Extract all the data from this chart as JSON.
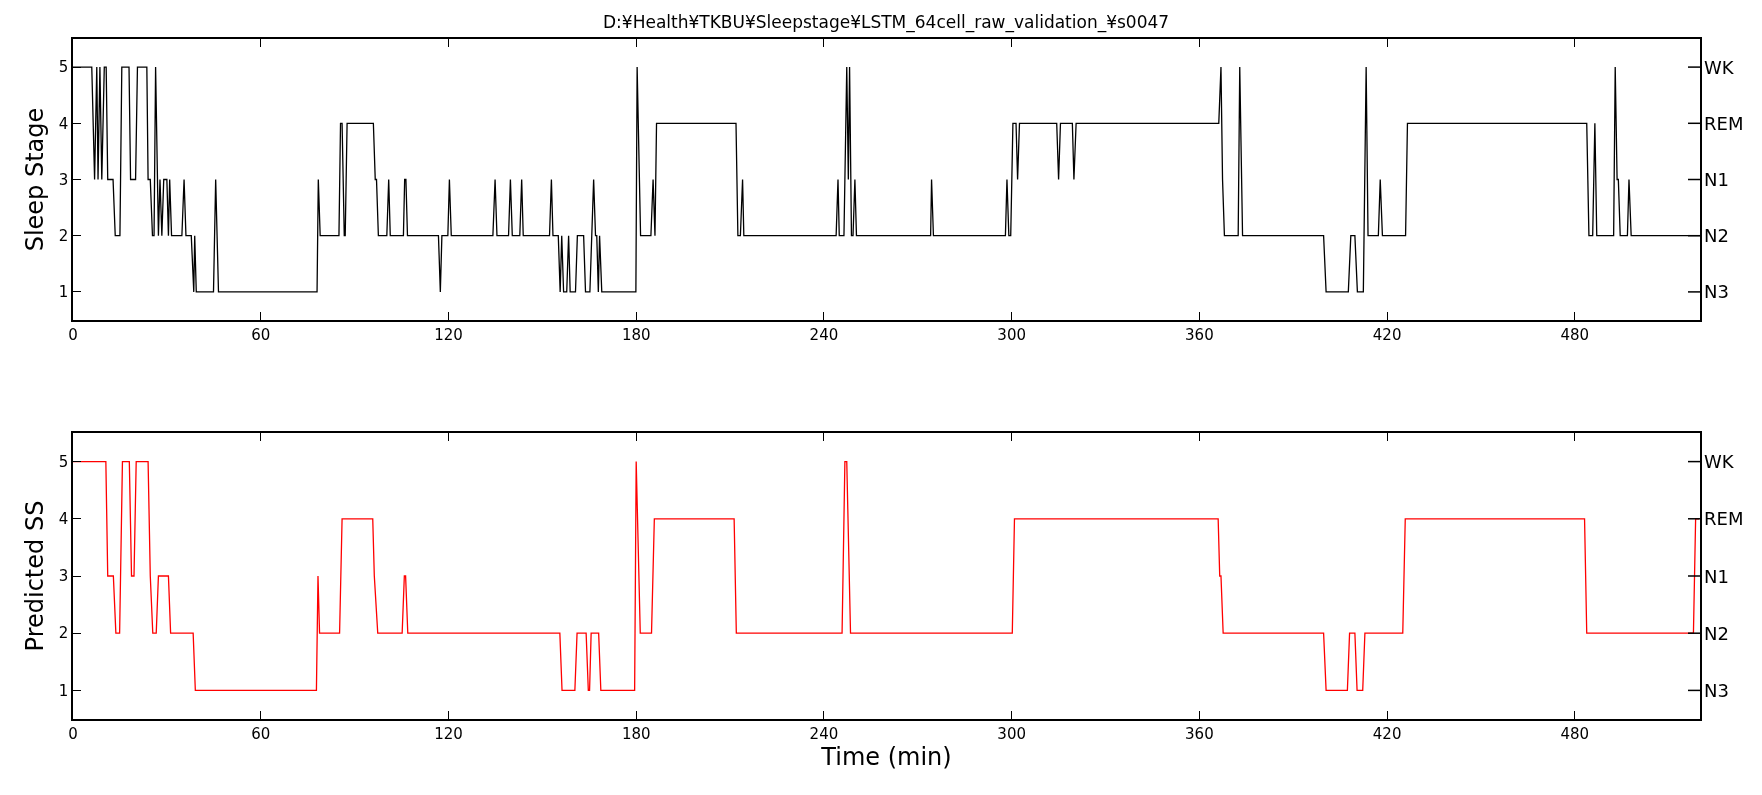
{
  "chart_data": [
    {
      "type": "line",
      "title": "D:¥Health¥TKBU¥Sleepstage¥LSTM_64cell_raw_validation_¥s0047",
      "ylabel": "Sleep Stage",
      "xlim": [
        0,
        520
      ],
      "xticks": [
        0,
        60,
        120,
        180,
        240,
        300,
        360,
        420,
        480
      ],
      "ylim": [
        0.5,
        5.5
      ],
      "yticks": [
        1,
        2,
        3,
        4,
        5
      ],
      "y2_categories": [
        "WK",
        "REM",
        "N1",
        "N2",
        "N3"
      ],
      "line_style": "solid",
      "series": [
        {
          "color": "#000000",
          "x": [
            0,
            6.0,
            6.9,
            7.6,
            8.0,
            8.6,
            9.2,
            10.0,
            10.6,
            11.1,
            12.8,
            13.5,
            15.0,
            15.6,
            17.9,
            18.4,
            20.0,
            20.6,
            23.6,
            24.0,
            24.7,
            25.4,
            25.9,
            26.4,
            27.3,
            27.8,
            28.4,
            29.0,
            30.0,
            30.5,
            30.9,
            31.5,
            34.8,
            35.5,
            36.1,
            37.8,
            38.6,
            38.9,
            39.4,
            44.9,
            45.6,
            46.5,
            78.0,
            78.4,
            79.0,
            85.0,
            85.5,
            86.0,
            86.7,
            87.0,
            87.6,
            96.0,
            96.6,
            97.0,
            97.6,
            100.3,
            100.9,
            101.4,
            105.6,
            106.0,
            106.4,
            106.9,
            116.8,
            117.4,
            117.9,
            119.8,
            120.3,
            120.9,
            134.2,
            134.9,
            135.5,
            139.2,
            139.8,
            140.4,
            142.8,
            143.4,
            143.9,
            152.3,
            152.9,
            153.4,
            155.1,
            155.7,
            156.2,
            156.8,
            157.8,
            158.4,
            158.9,
            160.6,
            161.2,
            163.2,
            163.8,
            165.2,
            166.4,
            167.0,
            167.4,
            167.9,
            168.3,
            169.0,
            179.9,
            180.3,
            181.4,
            184.7,
            185.4,
            186.0,
            186.5,
            211.9,
            212.5,
            213.3,
            214.0,
            214.4,
            243.9,
            244.5,
            244.9,
            246.4,
            247.3,
            247.8,
            248.2,
            248.8,
            249.3,
            249.9,
            250.4,
            274.1,
            274.4,
            275.0,
            298.0,
            298.5,
            299.1,
            299.7,
            300.4,
            301.4,
            301.9,
            302.5,
            314.4,
            315.0,
            315.6,
            319.4,
            319.9,
            320.6,
            366.2,
            366.9,
            367.4,
            368.0,
            372.4,
            372.9,
            373.8,
            399.7,
            400.5,
            407.6,
            408.4,
            409.7,
            410.5,
            412.4,
            413.3,
            413.9,
            417.2,
            417.8,
            418.5,
            425.9,
            426.5,
            483.8,
            484.5,
            485.7,
            486.4,
            487.0,
            492.4,
            492.9,
            493.5,
            493.9,
            494.5,
            496.8,
            497.3,
            498.0,
            520
          ],
          "values": [
            5,
            5,
            3,
            5,
            3,
            5,
            3,
            5,
            5,
            3,
            3,
            2,
            2,
            5,
            5,
            3,
            3,
            5,
            5,
            3,
            3,
            2,
            2,
            5,
            2,
            3,
            2,
            3,
            3,
            2,
            3,
            2,
            2,
            3,
            2,
            2,
            1,
            2,
            1,
            1,
            3,
            1,
            1,
            3,
            2,
            2,
            4,
            4,
            2,
            2,
            4,
            4,
            3,
            3,
            2,
            2,
            3,
            2,
            2,
            3,
            3,
            2,
            2,
            1,
            2,
            2,
            3,
            2,
            2,
            3,
            2,
            2,
            3,
            2,
            2,
            3,
            2,
            2,
            3,
            2,
            2,
            1,
            2,
            1,
            1,
            2,
            1,
            1,
            2,
            2,
            1,
            1,
            3,
            2,
            2,
            1,
            2,
            1,
            1,
            5,
            2,
            2,
            3,
            2,
            4,
            4,
            2,
            2,
            3,
            2,
            2,
            3,
            2,
            2,
            5,
            3,
            5,
            2,
            2,
            3,
            2,
            2,
            3,
            2,
            2,
            3,
            2,
            2,
            4,
            4,
            3,
            4,
            4,
            3,
            4,
            4,
            3,
            4,
            4,
            5,
            3,
            2,
            2,
            5,
            2,
            2,
            1,
            1,
            2,
            2,
            1,
            1,
            5,
            2,
            2,
            3,
            2,
            2,
            4,
            4,
            2,
            2,
            4,
            2,
            2,
            5,
            3,
            3,
            2,
            2,
            3,
            2,
            2
          ]
        }
      ]
    },
    {
      "type": "line",
      "ylabel": "Predicted SS",
      "xlabel": "Time (min)",
      "xlim": [
        0,
        520
      ],
      "xticks": [
        0,
        60,
        120,
        180,
        240,
        300,
        360,
        420,
        480
      ],
      "ylim": [
        0.5,
        5.5
      ],
      "yticks": [
        1,
        2,
        3,
        4,
        5
      ],
      "y2_categories": [
        "WK",
        "REM",
        "N1",
        "N2",
        "N3"
      ],
      "line_style": "solid",
      "series": [
        {
          "color": "#ff0000",
          "x": [
            0,
            10.5,
            11.1,
            12.9,
            13.7,
            14.9,
            15.8,
            18.0,
            18.7,
            19.5,
            20.2,
            24.0,
            24.7,
            25.5,
            26.6,
            27.3,
            30.5,
            31.2,
            38.4,
            39.1,
            77.8,
            78.3,
            78.8,
            85.2,
            86.0,
            95.8,
            96.3,
            97.4,
            105.2,
            105.9,
            106.3,
            107.0,
            155.6,
            156.3,
            160.4,
            161.1,
            164.0,
            164.7,
            165.1,
            165.6,
            168.0,
            168.7,
            179.5,
            180.0,
            181.3,
            184.9,
            185.8,
            211.3,
            212.0,
            245.8,
            246.7,
            247.3,
            248.5,
            300.2,
            300.9,
            366.0,
            366.5,
            366.9,
            367.6,
            399.7,
            400.5,
            407.3,
            408.0,
            409.7,
            410.4,
            412.2,
            412.9,
            425.0,
            425.8,
            483.1,
            483.8,
            517.9,
            518.6,
            519.7
          ],
          "values": [
            5,
            5,
            3,
            3,
            2,
            2,
            5,
            5,
            3,
            3,
            5,
            5,
            3,
            2,
            2,
            3,
            3,
            2,
            2,
            1,
            1,
            3,
            2,
            2,
            4,
            4,
            3,
            2,
            2,
            3,
            3,
            2,
            2,
            1,
            1,
            2,
            2,
            1,
            1,
            2,
            2,
            1,
            1,
            5,
            2,
            2,
            4,
            4,
            2,
            2,
            5,
            5,
            2,
            2,
            4,
            4,
            3,
            3,
            2,
            2,
            1,
            1,
            2,
            2,
            1,
            1,
            2,
            2,
            4,
            4,
            2,
            2,
            4,
            4
          ]
        }
      ]
    }
  ]
}
